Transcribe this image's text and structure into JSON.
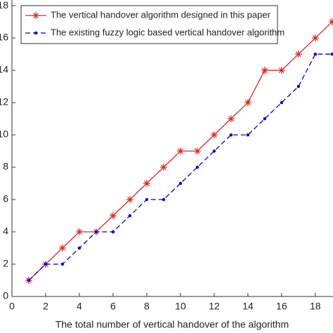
{
  "chart_data": {
    "type": "line",
    "x_label": "The total number of vertical handover of the algorithm",
    "x": [
      1,
      2,
      3,
      4,
      5,
      6,
      7,
      8,
      9,
      10,
      11,
      12,
      13,
      14,
      15,
      16,
      17,
      18,
      19
    ],
    "series": [
      {
        "name": "The vertical handover algorithm designed in this paper",
        "color": "#d62728",
        "line_style": "solid",
        "marker": "asterisk",
        "values": [
          1,
          2,
          3,
          4,
          4,
          5,
          6,
          7,
          8,
          9,
          9,
          10,
          11,
          12,
          14,
          14,
          15,
          16,
          17
        ]
      },
      {
        "name": "The existing fuzzy logic based vertical handover algorithm",
        "color": "#0000cc",
        "line_style": "dashed",
        "marker": "dot",
        "values": [
          1,
          2,
          2,
          3,
          4,
          4,
          5,
          6,
          6,
          7,
          8,
          9,
          10,
          10,
          11,
          12,
          13,
          15,
          15
        ]
      }
    ],
    "xlim": [
      0,
      19.05
    ],
    "xticks": [
      0,
      2,
      4,
      6,
      8,
      10,
      12,
      14,
      16,
      18
    ],
    "ylim": [
      0,
      18.35
    ],
    "yticks": [
      0,
      2,
      4,
      6,
      8,
      10,
      12,
      14,
      16,
      18
    ],
    "legend": "upper left"
  }
}
